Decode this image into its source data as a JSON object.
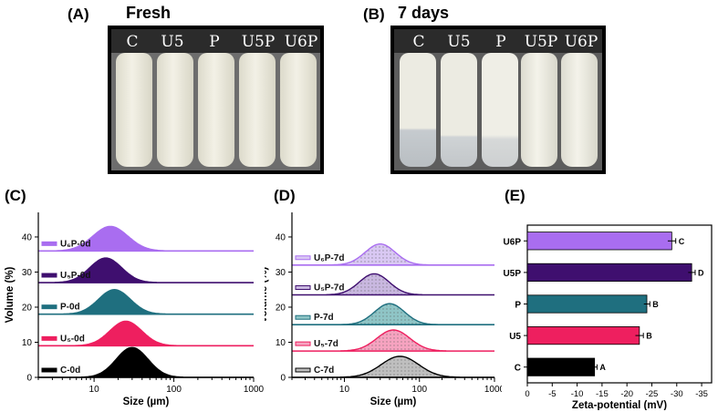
{
  "panel_a": {
    "label": "(A)",
    "title": "Fresh",
    "samples": [
      "C",
      "U5",
      "P",
      "U5P",
      "U6P"
    ]
  },
  "panel_b": {
    "label": "(B)",
    "title": "7 days",
    "samples": [
      "C",
      "U5",
      "P",
      "U5P",
      "U6P"
    ]
  },
  "panel_c": {
    "label": "(C)"
  },
  "panel_d": {
    "label": "(D)"
  },
  "panel_e": {
    "label": "(E)"
  },
  "colors": {
    "C": "#000000",
    "U5": "#ee1f5f",
    "P": "#1f6f7f",
    "U5P": "#3f0f6f",
    "U6P": "#a96df0",
    "C_7d": "#bfbfbf",
    "U5_7d": "#f6a3c0",
    "P_7d": "#8fc5c6",
    "U5P_7d": "#c9b8e0",
    "U6P_7d": "#d9c8f3"
  },
  "chart_data": [
    {
      "type": "area",
      "title": "(C)",
      "xlabel": "Size (µm)",
      "ylabel": "Volume (%)",
      "xscale": "log",
      "xlim": [
        2,
        1000
      ],
      "ylim": [
        0,
        47
      ],
      "xticks": [
        "10",
        "100",
        "1000"
      ],
      "yticks": [
        "0",
        "10",
        "20",
        "30",
        "40"
      ],
      "series": [
        {
          "name": "C-0d",
          "key": "C",
          "baseline": 0,
          "peak_x": 30,
          "peak_height": 8.5,
          "sigma_log": 0.2
        },
        {
          "name": "U5-0d",
          "key": "U5",
          "baseline": 9,
          "peak_x": 25,
          "peak_height": 7,
          "sigma_log": 0.2
        },
        {
          "name": "P-0d",
          "key": "P",
          "baseline": 18,
          "peak_x": 18,
          "peak_height": 7,
          "sigma_log": 0.2
        },
        {
          "name": "U5P-0d",
          "key": "U5P",
          "baseline": 27,
          "peak_x": 14,
          "peak_height": 7,
          "sigma_log": 0.2
        },
        {
          "name": "U6P-0d",
          "key": "U6P",
          "baseline": 36,
          "peak_x": 16,
          "peak_height": 7,
          "sigma_log": 0.22
        }
      ]
    },
    {
      "type": "area",
      "title": "(D)",
      "xlabel": "Size (µm)",
      "ylabel": "Volume (%)",
      "xscale": "log",
      "xlim": [
        2,
        1000
      ],
      "ylim": [
        0,
        47
      ],
      "xticks": [
        "10",
        "100",
        "1000"
      ],
      "yticks": [
        "0",
        "10",
        "20",
        "30",
        "40"
      ],
      "series": [
        {
          "name": "C-7d",
          "key": "C_7d",
          "edge": "C",
          "baseline": 0,
          "peak_x": 55,
          "peak_height": 6,
          "sigma_log": 0.25
        },
        {
          "name": "U5-7d",
          "key": "U5_7d",
          "edge": "U5",
          "baseline": 7.5,
          "peak_x": 45,
          "peak_height": 6,
          "sigma_log": 0.22
        },
        {
          "name": "P-7d",
          "key": "P_7d",
          "edge": "P",
          "baseline": 15,
          "peak_x": 40,
          "peak_height": 6,
          "sigma_log": 0.2
        },
        {
          "name": "U5P-7d",
          "key": "U5P_7d",
          "edge": "U5P",
          "baseline": 23.5,
          "peak_x": 25,
          "peak_height": 6,
          "sigma_log": 0.2
        },
        {
          "name": "U6P-7d",
          "key": "U6P_7d",
          "edge": "U6P",
          "baseline": 32,
          "peak_x": 30,
          "peak_height": 6,
          "sigma_log": 0.2
        }
      ]
    },
    {
      "type": "bar",
      "orientation": "horizontal",
      "title": "(E)",
      "xlabel": "Zeta-potential (mV)",
      "ylabel": "",
      "xlim": [
        0,
        -37
      ],
      "xticks": [
        "0",
        "-5",
        "-10",
        "-15",
        "-20",
        "-25",
        "-30",
        "-35"
      ],
      "categories": [
        "U6P",
        "U5P",
        "P",
        "U5",
        "C"
      ],
      "values": [
        -29,
        -33,
        -24,
        -22.5,
        -13.5
      ],
      "errors": [
        0.8,
        0.7,
        0.6,
        0.8,
        0.5
      ],
      "letters": [
        "C",
        "D",
        "B",
        "B",
        "A"
      ],
      "keys": [
        "U6P",
        "U5P",
        "P",
        "U5",
        "C"
      ]
    }
  ]
}
